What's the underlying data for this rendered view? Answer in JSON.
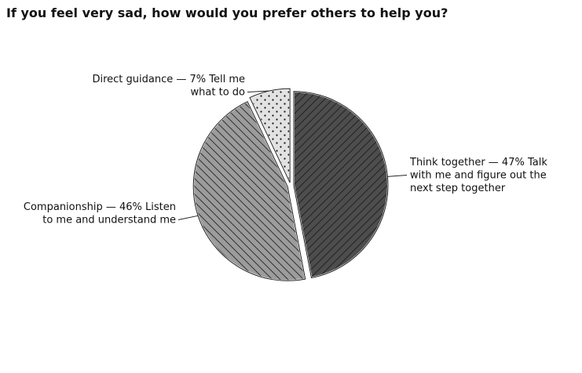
{
  "chart_data": {
    "type": "pie",
    "title": "If you feel very sad, how would you prefer others to help you?",
    "categories": [
      "Think together — 47% Talk with me and figure out the next step together",
      "Companionship — 46% Listen to me and understand me",
      "Direct guidance — 7% Tell me what to do"
    ],
    "values": [
      47,
      46,
      7
    ],
    "colors": [
      "#4d4d4d",
      "#9c9c9c",
      "#e2e2e2"
    ]
  }
}
